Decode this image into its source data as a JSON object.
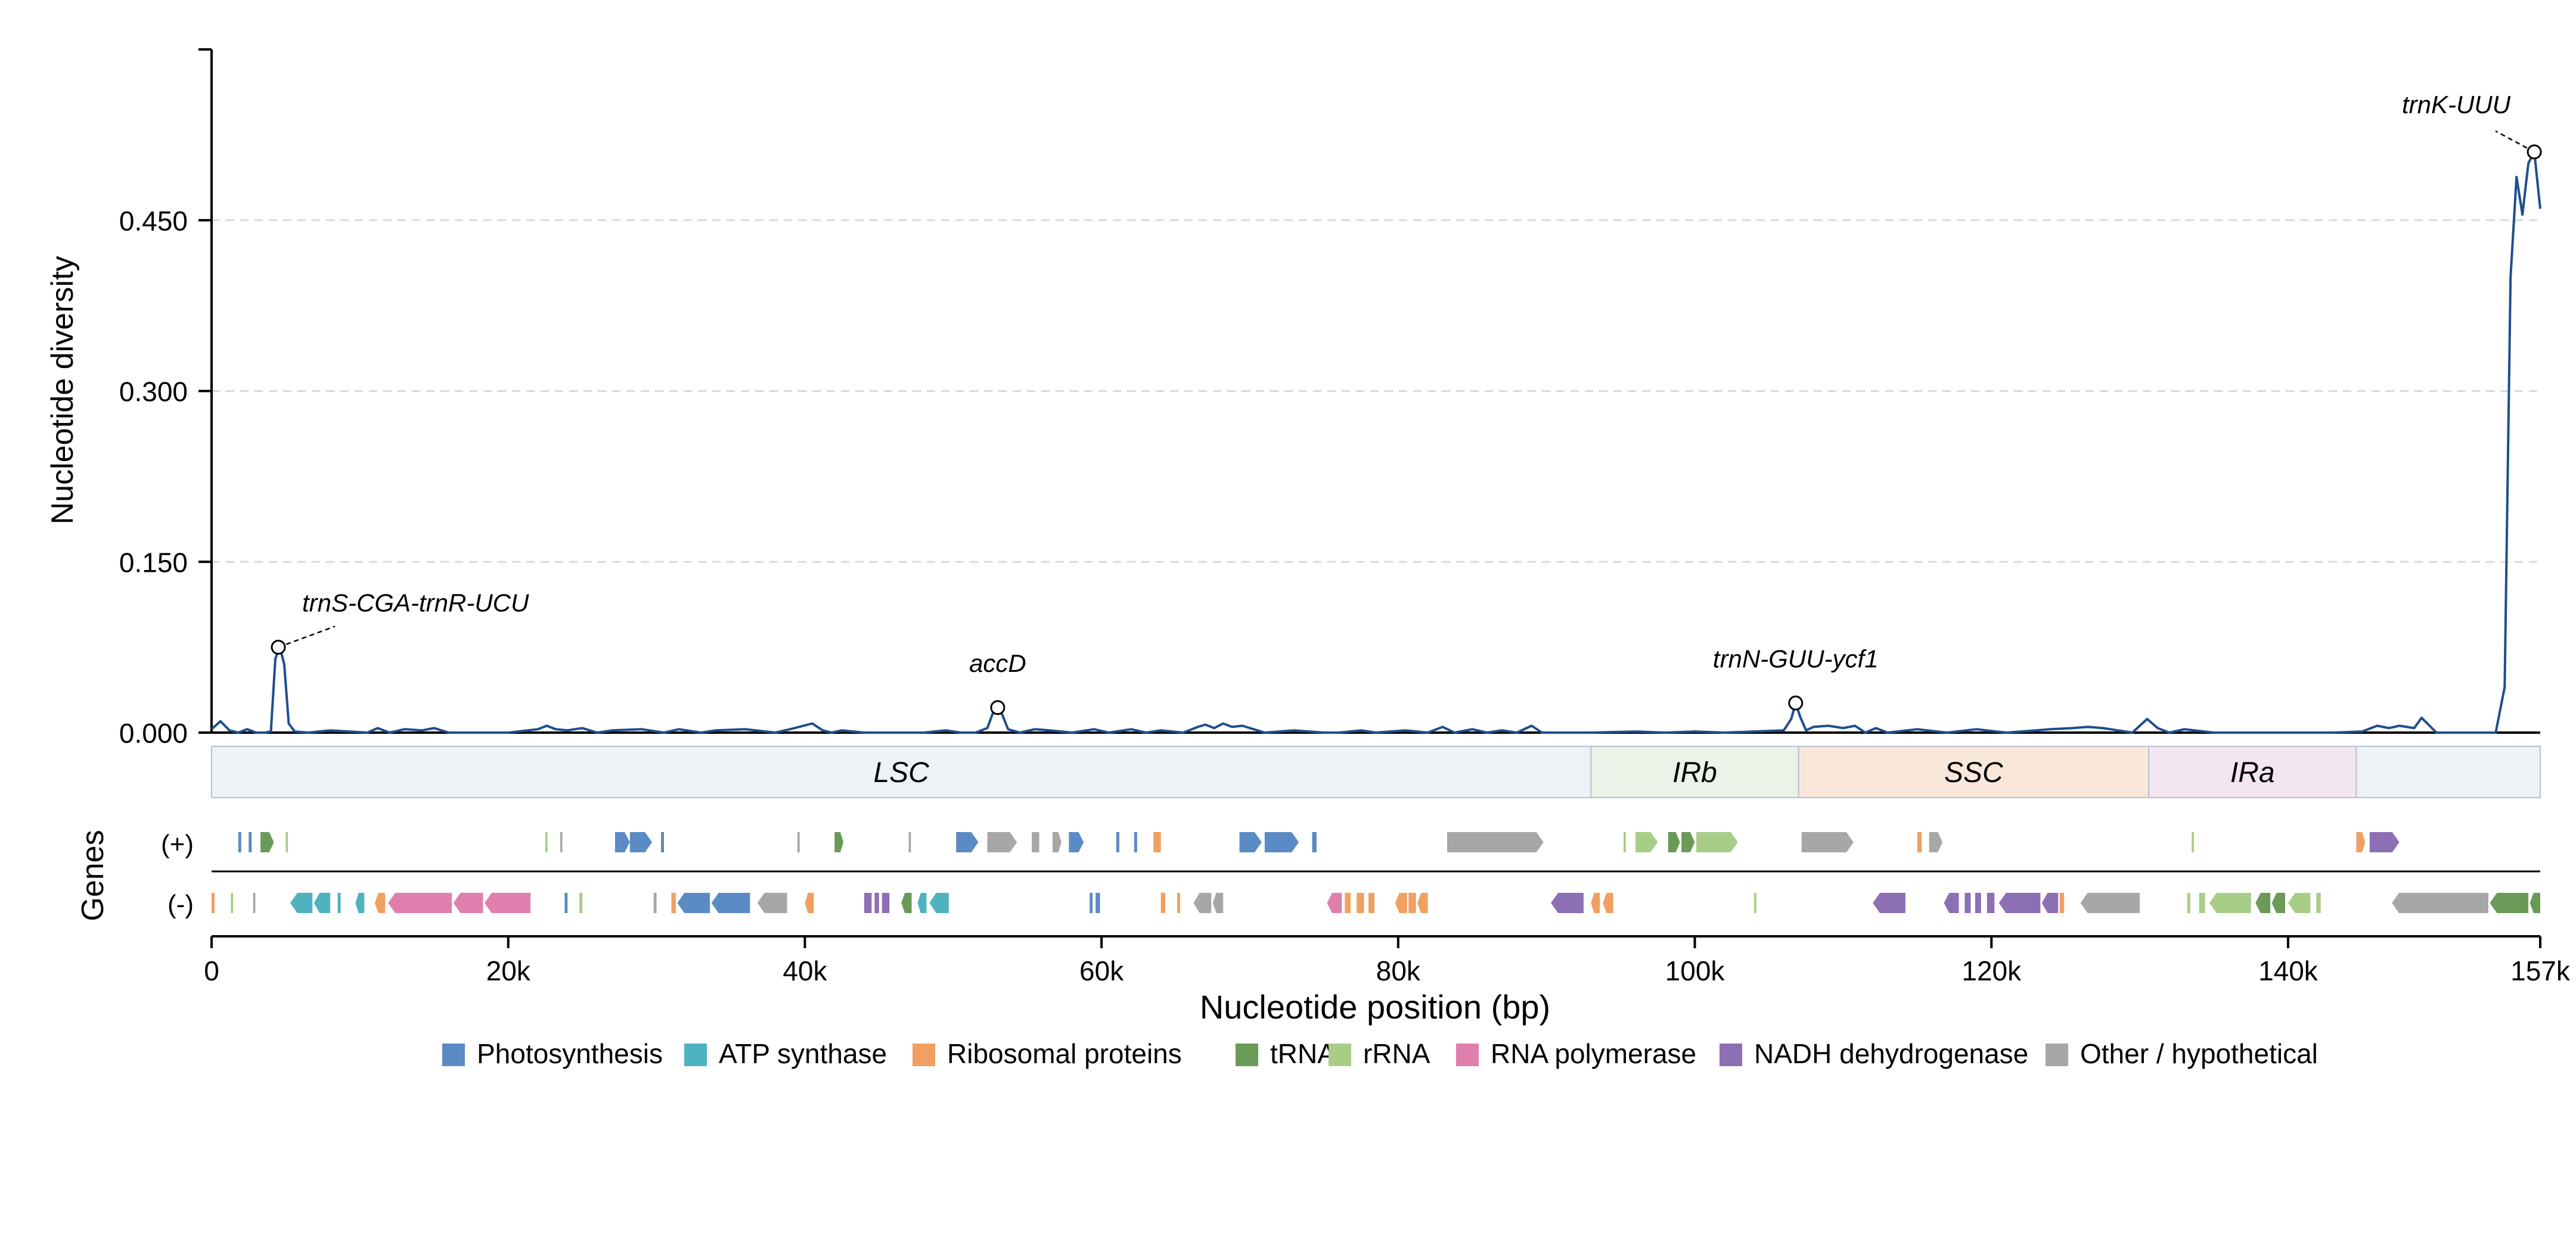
{
  "chart_data": {
    "type": "line",
    "title": "",
    "xlabel": "Nucleotide position (bp)",
    "ylabel": "Nucleotide diversity",
    "genes_label": "Genes",
    "xlim": [
      0,
      157000
    ],
    "ylim": [
      0,
      0.6
    ],
    "yticks": [
      0.0,
      0.15,
      0.3,
      0.45
    ],
    "ytick_labels": [
      "0.000",
      "0.150",
      "0.300",
      "0.450"
    ],
    "xticks": [
      0,
      20000,
      40000,
      60000,
      80000,
      100000,
      120000,
      140000,
      157000
    ],
    "xtick_labels": [
      "0",
      "20k",
      "40k",
      "60k",
      "80k",
      "100k",
      "120k",
      "140k",
      "157k"
    ],
    "grid": "horizontal dashed",
    "line_color": "#1f4e8c",
    "series": [
      {
        "x": [
          0,
          600,
          1200,
          1800,
          2400,
          3000,
          3600,
          4000,
          4300,
          4600,
          4900,
          5200,
          5600,
          6500,
          8000,
          10500,
          11200,
          12000,
          13000,
          14200,
          15000,
          16000,
          20000,
          22000,
          22600,
          23200,
          24000,
          25000,
          26000,
          27000,
          29000,
          30500,
          31500,
          33000,
          34000,
          36000,
          38000,
          39000,
          40500,
          41200,
          41800,
          42500,
          44000,
          46000,
          48000,
          49500,
          50500,
          51500,
          52300,
          52700,
          53000,
          53300,
          53700,
          54500,
          55500,
          56500,
          58000,
          59500,
          60500,
          62000,
          63000,
          64000,
          65500,
          66500,
          67000,
          67600,
          68200,
          68800,
          69500,
          71000,
          73000,
          75000,
          76000,
          77500,
          78500,
          80500,
          82000,
          83000,
          83800,
          85000,
          86000,
          87000,
          88000,
          89000,
          89700,
          90500,
          93000,
          96000,
          98000,
          100000,
          102000,
          104000,
          106000,
          106500,
          106800,
          107100,
          107500,
          108000,
          109000,
          110000,
          110800,
          111500,
          112200,
          113000,
          115000,
          117000,
          119000,
          121000,
          123000,
          124000,
          125500,
          126500,
          127500,
          128500,
          129500,
          130000,
          130500,
          131200,
          132000,
          133000,
          135000,
          138000,
          141000,
          143000,
          145000,
          146000,
          146800,
          147500,
          148000,
          148500,
          149000,
          150000,
          152000,
          154000,
          154600,
          155000,
          155400,
          155800,
          156200,
          156600,
          157000
        ],
        "y": [
          0.003,
          0.01,
          0.002,
          0.0,
          0.003,
          0.0,
          0.0,
          0.001,
          0.065,
          0.075,
          0.06,
          0.008,
          0.001,
          0.0,
          0.002,
          0.0,
          0.004,
          0.0,
          0.003,
          0.002,
          0.004,
          0.0,
          0.0,
          0.003,
          0.006,
          0.003,
          0.002,
          0.004,
          0.0,
          0.002,
          0.003,
          0.0,
          0.003,
          0.0,
          0.002,
          0.003,
          0.0,
          0.003,
          0.008,
          0.002,
          0.0,
          0.002,
          0.0,
          0.0,
          0.0,
          0.002,
          0.0,
          0.0,
          0.004,
          0.018,
          0.022,
          0.016,
          0.003,
          0.0,
          0.003,
          0.002,
          0.0,
          0.003,
          0.0,
          0.003,
          0.0,
          0.002,
          0.0,
          0.005,
          0.007,
          0.004,
          0.008,
          0.005,
          0.006,
          0.0,
          0.002,
          0.0,
          0.0,
          0.002,
          0.0,
          0.002,
          0.0,
          0.005,
          0.0,
          0.003,
          0.0,
          0.002,
          0.0,
          0.006,
          0.0,
          0.0,
          0.0,
          0.001,
          0.0,
          0.001,
          0.0,
          0.001,
          0.002,
          0.012,
          0.026,
          0.014,
          0.002,
          0.005,
          0.006,
          0.004,
          0.006,
          0.0,
          0.004,
          0.0,
          0.003,
          0.0,
          0.003,
          0.0,
          0.002,
          0.003,
          0.004,
          0.005,
          0.004,
          0.002,
          0.0,
          0.006,
          0.012,
          0.004,
          0.0,
          0.003,
          0.0,
          0.0,
          0.0,
          0.0,
          0.001,
          0.006,
          0.004,
          0.006,
          0.005,
          0.004,
          0.013,
          0.0,
          0.0,
          0.0,
          0.04,
          0.4,
          0.488,
          0.455,
          0.5,
          0.51,
          0.46
        ]
      }
    ],
    "annotations": [
      {
        "label": "trnS-CGA-trnR-UCU",
        "x": 4500,
        "y": 0.075
      },
      {
        "label": "accD",
        "x": 53000,
        "y": 0.022
      },
      {
        "label": "trnN-GUU-ycf1",
        "x": 106800,
        "y": 0.026
      },
      {
        "label": "trnK-UUU",
        "x": 156600,
        "y": 0.51
      }
    ],
    "regions": [
      {
        "label": "LSC",
        "start": 0,
        "end": 93000,
        "color": "#eef2f6"
      },
      {
        "label": "IRb",
        "start": 93000,
        "end": 107000,
        "color": "#ebf3e8"
      },
      {
        "label": "SSC",
        "start": 107000,
        "end": 130600,
        "color": "#f9e8da"
      },
      {
        "label": "IRa",
        "start": 130600,
        "end": 144600,
        "color": "#f3e6f1"
      },
      {
        "label": "",
        "start": 144600,
        "end": 157000,
        "color": "#eef2f6"
      }
    ],
    "strand_labels": [
      "(+)",
      "(-)"
    ],
    "gene_colors": {
      "photo": "#5b8bc4",
      "atp": "#4fb3bf",
      "ribo": "#f0a061",
      "trna": "#6a9a58",
      "rrna": "#a8cd87",
      "rpo": "#e07fae",
      "ndh": "#8c6fb5",
      "other": "#a7a7a7"
    },
    "genes_plus": [
      {
        "s": 1800,
        "e": 2000,
        "c": "photo"
      },
      {
        "s": 2500,
        "e": 2700,
        "c": "photo"
      },
      {
        "s": 3300,
        "e": 4200,
        "c": "trna"
      },
      {
        "s": 5000,
        "e": 5150,
        "c": "rrna"
      },
      {
        "s": 22500,
        "e": 22650,
        "c": "rrna"
      },
      {
        "s": 23500,
        "e": 23650,
        "c": "other"
      },
      {
        "s": 27200,
        "e": 28200,
        "c": "photo"
      },
      {
        "s": 28200,
        "e": 29700,
        "c": "photo"
      },
      {
        "s": 30300,
        "e": 30500,
        "c": "photo"
      },
      {
        "s": 39500,
        "e": 39650,
        "c": "other"
      },
      {
        "s": 42000,
        "e": 42600,
        "c": "trna"
      },
      {
        "s": 47000,
        "e": 47150,
        "c": "other"
      },
      {
        "s": 50200,
        "e": 51700,
        "c": "photo"
      },
      {
        "s": 52300,
        "e": 54300,
        "c": "other"
      },
      {
        "s": 55300,
        "e": 55800,
        "c": "other"
      },
      {
        "s": 56700,
        "e": 57300,
        "c": "other"
      },
      {
        "s": 57800,
        "e": 58800,
        "c": "photo"
      },
      {
        "s": 61000,
        "e": 61200,
        "c": "photo"
      },
      {
        "s": 62200,
        "e": 62400,
        "c": "photo"
      },
      {
        "s": 63500,
        "e": 64000,
        "c": "ribo"
      },
      {
        "s": 69300,
        "e": 70800,
        "c": "photo"
      },
      {
        "s": 71000,
        "e": 73300,
        "c": "photo"
      },
      {
        "s": 74200,
        "e": 74500,
        "c": "photo"
      },
      {
        "s": 83300,
        "e": 89800,
        "c": "other"
      },
      {
        "s": 95200,
        "e": 95350,
        "c": "rrna"
      },
      {
        "s": 96000,
        "e": 97500,
        "c": "rrna"
      },
      {
        "s": 98200,
        "e": 99000,
        "c": "trna"
      },
      {
        "s": 99100,
        "e": 100000,
        "c": "trna"
      },
      {
        "s": 100100,
        "e": 102900,
        "c": "rrna"
      },
      {
        "s": 107200,
        "e": 110700,
        "c": "other"
      },
      {
        "s": 115000,
        "e": 115300,
        "c": "ribo"
      },
      {
        "s": 115800,
        "e": 116700,
        "c": "other"
      },
      {
        "s": 133500,
        "e": 133650,
        "c": "rrna"
      },
      {
        "s": 144600,
        "e": 145200,
        "c": "ribo"
      },
      {
        "s": 145500,
        "e": 147500,
        "c": "ndh"
      }
    ],
    "genes_minus": [
      {
        "s": 0,
        "e": 200,
        "c": "ribo"
      },
      {
        "s": 1300,
        "e": 1450,
        "c": "rrna"
      },
      {
        "s": 2800,
        "e": 2950,
        "c": "other"
      },
      {
        "s": 5300,
        "e": 6800,
        "c": "atp"
      },
      {
        "s": 6900,
        "e": 8000,
        "c": "atp"
      },
      {
        "s": 8500,
        "e": 8700,
        "c": "atp"
      },
      {
        "s": 9700,
        "e": 10300,
        "c": "atp"
      },
      {
        "s": 11000,
        "e": 11700,
        "c": "ribo"
      },
      {
        "s": 11900,
        "e": 16200,
        "c": "rpo"
      },
      {
        "s": 16300,
        "e": 18300,
        "c": "rpo"
      },
      {
        "s": 18400,
        "e": 21500,
        "c": "rpo"
      },
      {
        "s": 23800,
        "e": 24000,
        "c": "photo"
      },
      {
        "s": 24800,
        "e": 25000,
        "c": "rrna"
      },
      {
        "s": 29800,
        "e": 30000,
        "c": "other"
      },
      {
        "s": 31000,
        "e": 31300,
        "c": "ribo"
      },
      {
        "s": 31400,
        "e": 33600,
        "c": "photo"
      },
      {
        "s": 33700,
        "e": 36300,
        "c": "photo"
      },
      {
        "s": 36800,
        "e": 38800,
        "c": "other"
      },
      {
        "s": 40000,
        "e": 40600,
        "c": "ribo"
      },
      {
        "s": 44000,
        "e": 44500,
        "c": "ndh"
      },
      {
        "s": 44700,
        "e": 45000,
        "c": "ndh"
      },
      {
        "s": 45200,
        "e": 45700,
        "c": "ndh"
      },
      {
        "s": 46500,
        "e": 47200,
        "c": "trna"
      },
      {
        "s": 47600,
        "e": 48200,
        "c": "atp"
      },
      {
        "s": 48400,
        "e": 49700,
        "c": "atp"
      },
      {
        "s": 59200,
        "e": 59400,
        "c": "photo"
      },
      {
        "s": 59600,
        "e": 59900,
        "c": "photo"
      },
      {
        "s": 64000,
        "e": 64300,
        "c": "ribo"
      },
      {
        "s": 65100,
        "e": 65300,
        "c": "ribo"
      },
      {
        "s": 66200,
        "e": 67400,
        "c": "other"
      },
      {
        "s": 67500,
        "e": 68200,
        "c": "other"
      },
      {
        "s": 75200,
        "e": 76200,
        "c": "rpo"
      },
      {
        "s": 76400,
        "e": 76800,
        "c": "ribo"
      },
      {
        "s": 77200,
        "e": 77700,
        "c": "ribo"
      },
      {
        "s": 78000,
        "e": 78400,
        "c": "ribo"
      },
      {
        "s": 79800,
        "e": 80600,
        "c": "ribo"
      },
      {
        "s": 80700,
        "e": 81200,
        "c": "ribo"
      },
      {
        "s": 81300,
        "e": 82000,
        "c": "ribo"
      },
      {
        "s": 90300,
        "e": 92500,
        "c": "ndh"
      },
      {
        "s": 93000,
        "e": 93600,
        "c": "ribo"
      },
      {
        "s": 93800,
        "e": 94500,
        "c": "ribo"
      },
      {
        "s": 104000,
        "e": 104150,
        "c": "rrna"
      },
      {
        "s": 112000,
        "e": 114200,
        "c": "ndh"
      },
      {
        "s": 116800,
        "e": 117800,
        "c": "ndh"
      },
      {
        "s": 118200,
        "e": 118600,
        "c": "ndh"
      },
      {
        "s": 118900,
        "e": 119300,
        "c": "ndh"
      },
      {
        "s": 119700,
        "e": 120200,
        "c": "ndh"
      },
      {
        "s": 120500,
        "e": 123300,
        "c": "ndh"
      },
      {
        "s": 123400,
        "e": 124500,
        "c": "ndh"
      },
      {
        "s": 124600,
        "e": 124900,
        "c": "ribo"
      },
      {
        "s": 126000,
        "e": 130000,
        "c": "other"
      },
      {
        "s": 133200,
        "e": 133400,
        "c": "rrna"
      },
      {
        "s": 134000,
        "e": 134400,
        "c": "rrna"
      },
      {
        "s": 134700,
        "e": 137500,
        "c": "rrna"
      },
      {
        "s": 137800,
        "e": 138800,
        "c": "trna"
      },
      {
        "s": 138900,
        "e": 139800,
        "c": "trna"
      },
      {
        "s": 140000,
        "e": 141500,
        "c": "rrna"
      },
      {
        "s": 141900,
        "e": 142200,
        "c": "rrna"
      },
      {
        "s": 147000,
        "e": 153500,
        "c": "other"
      },
      {
        "s": 153600,
        "e": 156200,
        "c": "trna"
      },
      {
        "s": 156300,
        "e": 157000,
        "c": "trna"
      }
    ],
    "legend_position": "bottom-center",
    "legend": [
      {
        "label": "Photosynthesis",
        "color": "#5b8bc4"
      },
      {
        "label": "ATP synthase",
        "color": "#4fb3bf"
      },
      {
        "label": "Ribosomal proteins",
        "color": "#f0a061"
      },
      {
        "label": "tRNA",
        "color": "#6a9a58"
      },
      {
        "label": "rRNA",
        "color": "#a8cd87"
      },
      {
        "label": "RNA polymerase",
        "color": "#e07fae"
      },
      {
        "label": "NADH dehydrogenase",
        "color": "#8c6fb5"
      },
      {
        "label": "Other / hypothetical",
        "color": "#a7a7a7"
      }
    ]
  }
}
